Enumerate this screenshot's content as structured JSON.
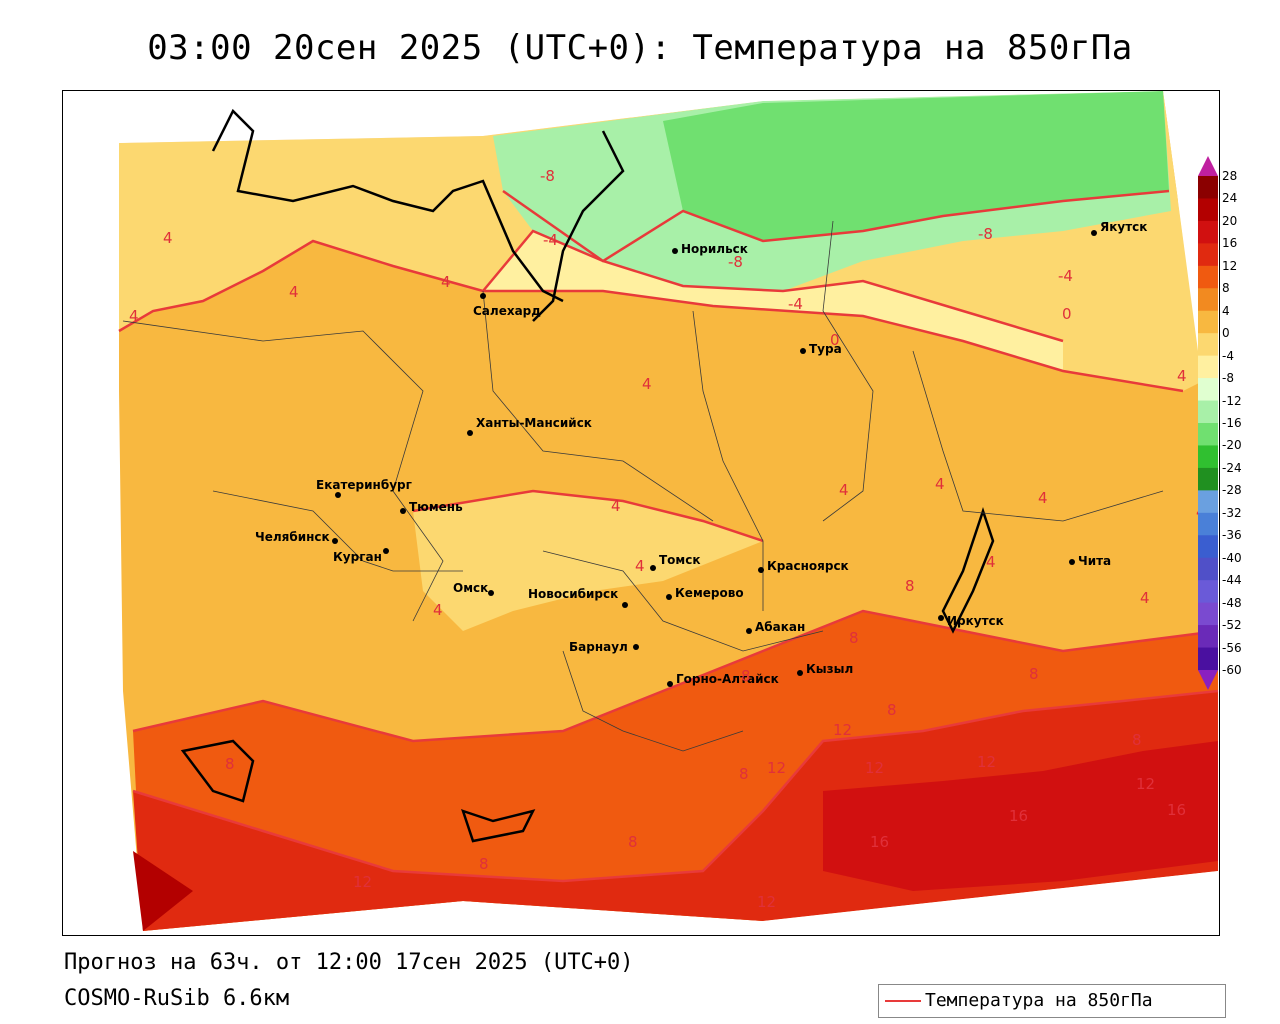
{
  "title": "03:00 20сен 2025 (UTC+0): Температура на 850гПа",
  "footer": {
    "forecast": "Прогноз на 63ч. от 12:00 17сен 2025 (UTC+0)",
    "model": "COSMO-RuSib 6.6км"
  },
  "legend": {
    "label": "Температура на 850гПа",
    "line_color": "#e83a3a"
  },
  "colorbar": {
    "ticks": [
      "28",
      "24",
      "20",
      "16",
      "12",
      "8",
      "4",
      "0",
      "-4",
      "-8",
      "-12",
      "-16",
      "-20",
      "-24",
      "-28",
      "-32",
      "-36",
      "-40",
      "-44",
      "-48",
      "-52",
      "-56",
      "-60"
    ],
    "colors": [
      "#8b0000",
      "#b30000",
      "#d11010",
      "#e02a10",
      "#f05a10",
      "#f28a20",
      "#f8b840",
      "#fcd870",
      "#fff0a0",
      "#e0ffd0",
      "#a8f0a8",
      "#70e070",
      "#30c030",
      "#209020",
      "#6aa0e0",
      "#4a80d8",
      "#3a5ed0",
      "#5050c8",
      "#6a5ad8",
      "#7a4ad0",
      "#6a2ab8",
      "#4a10a0",
      "#8a20c0"
    ]
  },
  "cities": [
    {
      "name": "Якутск"
    },
    {
      "name": "Норильск"
    },
    {
      "name": "Салехард"
    },
    {
      "name": "Тура"
    },
    {
      "name": "Ханты-Мансийск"
    },
    {
      "name": "Екатеринбург"
    },
    {
      "name": "Тюмень"
    },
    {
      "name": "Челябинск"
    },
    {
      "name": "Курган"
    },
    {
      "name": "Омск"
    },
    {
      "name": "Томск"
    },
    {
      "name": "Красноярск"
    },
    {
      "name": "Новосибирск"
    },
    {
      "name": "Кемерово"
    },
    {
      "name": "Барнаул"
    },
    {
      "name": "Абакан"
    },
    {
      "name": "Горно-Алтайск"
    },
    {
      "name": "Кызыл"
    },
    {
      "name": "Иркутск"
    },
    {
      "name": "Чита"
    }
  ],
  "isoline_labels": [
    "-8",
    "-4",
    "-8",
    "-8",
    "-4",
    "-4",
    "0",
    "0",
    "4",
    "4",
    "4",
    "4",
    "4",
    "4",
    "4",
    "4",
    "4",
    "4",
    "4",
    "4",
    "4",
    "4",
    "4",
    "8",
    "8",
    "8",
    "8",
    "8",
    "8",
    "8",
    "8",
    "8",
    "8",
    "12",
    "12",
    "12",
    "12",
    "12",
    "12",
    "12",
    "16",
    "16",
    "16"
  ]
}
